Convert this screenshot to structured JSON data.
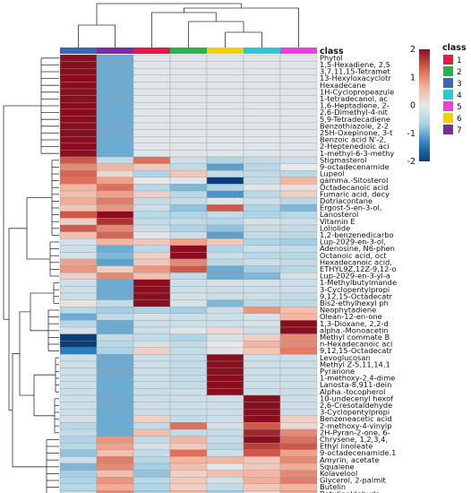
{
  "chart_data": {
    "type": "heatmap",
    "annotation_title": "class",
    "columns": [
      "3",
      "7",
      "1",
      "2",
      "6",
      "4",
      "5"
    ],
    "column_classes": [
      "3",
      "7",
      "1",
      "2",
      "6",
      "4",
      "5"
    ],
    "rows": [
      "Phytol",
      "1,5-Hexadiene, 2,5",
      "3,7,11,15-Tetramet",
      "13-Hexyloxacyclotr",
      "Hexadecane",
      "1H-Cyclopropeazule",
      "1-tetradecanol, ac",
      "1,6-Heptadiene, 2-",
      "2,6-Dimethyl-4-nit",
      "5,9-Tetradecadiene",
      "Benzothiazole, 2-2",
      "25H-Oxepinone, 3-t",
      "Benzoic acid N'-2,",
      "2-Heptenedioic aci",
      "1-methyl-6-3-methy",
      "Stigmasterol",
      "9-octadecenamide",
      "Lupeol",
      "gamma.-Sitosterol",
      "Octadecanoic acid",
      "Fumaric acid, decy",
      "Dotriacontane",
      "Ergost-5-en-3-ol,",
      "Lanosterol",
      "Vitamin E",
      "Loliolide",
      "1,2-benzenedicarbo",
      "Lup-2029-en-3-ol,",
      "Adenosine, N6-phen",
      "Octanoic acid, oct",
      "Hexadecanoic acid,",
      "ETHYL9Z,12Z-9,12-o",
      "Lup-2029-en-3-yl-a",
      "1-Methylbutylmande",
      "3-Cyclopentylpropi",
      "9,12,15-Octadecatr",
      "Bis2-ethylhexyl ph",
      "Neophytadiene",
      "Olean-12-en-one",
      "1,3-Dioxane, 2,2-d",
      "alpha.-Monoacetin",
      "Methyl commate B",
      "n-Hexadecanoic aci",
      "9,12,15-Octadecatr",
      "Levoglucosan",
      "Methyl Z-5,11,14,1",
      "Pyranone",
      "1-methoxy-2,4-dime",
      "Lanosta-8,911-dein",
      "Alpha.-tocopherol",
      "10-undecenyl hexof",
      "2,6-Cresotaldehyde",
      "3-Cyclopentylpropi",
      "Benzeneacetic acid",
      "2-methoxy-4-vinylp",
      "2H-Pyran-2-one, 6-",
      "Chrysene, 1,2,3,4,",
      "Ethyl linoleate",
      "9-octadecenamide.1",
      "Amyrin, acetate",
      "Squalene",
      "Kolavelool",
      "Glycerol, 2-palmit",
      "Butelin",
      "Betulinaldehyde"
    ],
    "values": [
      [
        2.2,
        -1.0,
        -0.1,
        -0.1,
        -0.1,
        -0.1,
        -0.1
      ],
      [
        2.2,
        -1.0,
        -0.1,
        -0.1,
        -0.1,
        -0.1,
        -0.1
      ],
      [
        2.2,
        -1.0,
        -0.1,
        -0.1,
        -0.1,
        -0.1,
        -0.1
      ],
      [
        2.2,
        -1.0,
        -0.1,
        -0.1,
        -0.1,
        -0.1,
        -0.1
      ],
      [
        2.2,
        -1.0,
        -0.1,
        -0.1,
        -0.1,
        -0.1,
        -0.1
      ],
      [
        2.2,
        -1.0,
        -0.1,
        -0.1,
        -0.1,
        -0.1,
        -0.1
      ],
      [
        2.2,
        -1.0,
        -0.1,
        -0.1,
        -0.1,
        -0.1,
        -0.1
      ],
      [
        2.2,
        -1.0,
        -0.1,
        -0.1,
        -0.1,
        -0.1,
        -0.1
      ],
      [
        2.2,
        -1.0,
        -0.1,
        -0.1,
        -0.1,
        -0.1,
        -0.1
      ],
      [
        2.2,
        -1.0,
        -0.1,
        -0.1,
        -0.1,
        -0.1,
        -0.1
      ],
      [
        2.2,
        -1.0,
        -0.1,
        -0.1,
        -0.1,
        -0.1,
        -0.1
      ],
      [
        2.2,
        -1.0,
        -0.1,
        -0.1,
        -0.1,
        -0.1,
        -0.1
      ],
      [
        2.2,
        -1.0,
        -0.1,
        -0.1,
        -0.1,
        -0.1,
        -0.1
      ],
      [
        2.2,
        -1.0,
        -0.1,
        -0.1,
        -0.1,
        -0.1,
        -0.1
      ],
      [
        2.2,
        -1.0,
        -0.1,
        -0.1,
        -0.1,
        -0.1,
        -0.1
      ],
      [
        1.4,
        -0.4,
        1.2,
        -0.3,
        -0.6,
        -0.4,
        -0.3
      ],
      [
        1.0,
        0.6,
        0.4,
        -0.4,
        -1.1,
        -0.5,
        0.0
      ],
      [
        1.3,
        0.2,
        -0.6,
        0.4,
        -0.4,
        -0.4,
        -0.5
      ],
      [
        1.2,
        0.8,
        0.0,
        -0.1,
        -2.2,
        -0.4,
        0.6
      ],
      [
        0.6,
        1.2,
        -0.5,
        -0.9,
        -0.6,
        -0.1,
        0.1
      ],
      [
        0.5,
        0.8,
        0.3,
        -0.5,
        -1.2,
        -0.5,
        0.3
      ],
      [
        0.7,
        1.1,
        -0.4,
        -0.4,
        -0.1,
        -0.3,
        -0.5
      ],
      [
        0.4,
        0.9,
        -0.3,
        -0.8,
        1.4,
        -0.6,
        -0.9
      ],
      [
        1.4,
        2.2,
        -0.5,
        -0.6,
        -0.4,
        -0.6,
        -0.5
      ],
      [
        0.3,
        1.7,
        -0.4,
        -0.4,
        -0.5,
        -0.2,
        -0.3
      ],
      [
        1.4,
        1.0,
        -0.3,
        -0.6,
        -0.8,
        -0.4,
        -0.4
      ],
      [
        0.5,
        1.3,
        -0.1,
        -0.3,
        -1.1,
        -0.4,
        -0.5
      ],
      [
        -0.2,
        0.6,
        0.4,
        0.8,
        0.4,
        -0.6,
        -0.7
      ],
      [
        -0.3,
        -1.0,
        -0.5,
        2.2,
        -0.6,
        -0.3,
        -0.4
      ],
      [
        -0.2,
        -0.9,
        0.3,
        2.2,
        -0.3,
        -0.5,
        -0.5
      ],
      [
        0.8,
        -1.1,
        0.4,
        1.0,
        -0.5,
        -0.3,
        -0.4
      ],
      [
        0.9,
        0.3,
        0.9,
        1.4,
        -1.0,
        -0.7,
        -0.5
      ],
      [
        0.3,
        1.0,
        0.5,
        -0.4,
        -1.0,
        -0.9,
        -0.2
      ],
      [
        -0.3,
        -1.0,
        2.2,
        -0.3,
        -0.2,
        -0.2,
        -0.3
      ],
      [
        -0.3,
        -1.0,
        2.2,
        -0.3,
        -0.3,
        -0.3,
        -0.3
      ],
      [
        -0.3,
        -1.0,
        2.2,
        -0.2,
        -0.3,
        -0.3,
        -0.4
      ],
      [
        0.1,
        -0.4,
        2.0,
        -0.2,
        -0.9,
        -0.5,
        -0.5
      ],
      [
        -0.5,
        -0.7,
        -0.6,
        -0.7,
        -0.3,
        0.9,
        0.5
      ],
      [
        -1.0,
        -0.4,
        -0.2,
        -0.3,
        -0.3,
        -0.2,
        0.6
      ],
      [
        -0.5,
        -1.0,
        -0.3,
        -0.3,
        -0.3,
        -0.2,
        2.2
      ],
      [
        -0.2,
        -1.0,
        -0.3,
        -0.1,
        0.2,
        -0.3,
        2.0
      ],
      [
        -2.0,
        -0.4,
        -0.4,
        -0.6,
        -0.2,
        0.3,
        1.0
      ],
      [
        -2.1,
        -0.5,
        -0.2,
        -0.4,
        0.0,
        0.6,
        1.0
      ],
      [
        -1.4,
        -0.6,
        0.3,
        -0.4,
        -0.1,
        0.4,
        1.1
      ],
      [
        -0.3,
        -1.0,
        -0.3,
        -0.4,
        2.2,
        -0.3,
        -0.3
      ],
      [
        -0.3,
        -1.0,
        -0.3,
        -0.4,
        2.2,
        -0.3,
        -0.3
      ],
      [
        -0.3,
        -1.0,
        -0.3,
        -0.4,
        2.2,
        -0.3,
        -0.3
      ],
      [
        -0.3,
        -1.0,
        -0.3,
        -0.4,
        2.2,
        -0.3,
        -0.3
      ],
      [
        -0.3,
        -1.0,
        -0.3,
        -0.4,
        2.2,
        -0.3,
        -0.3
      ],
      [
        -0.3,
        -1.0,
        -0.3,
        -0.3,
        2.1,
        -0.3,
        -0.3
      ],
      [
        -0.3,
        -1.0,
        -0.3,
        -0.3,
        -0.3,
        2.2,
        -0.3
      ],
      [
        -0.3,
        -1.0,
        -0.3,
        -0.3,
        -0.3,
        2.2,
        -0.3
      ],
      [
        -0.3,
        -1.0,
        -0.3,
        -0.3,
        -0.3,
        2.2,
        -0.3
      ],
      [
        -0.2,
        -1.0,
        0.3,
        -0.4,
        -0.3,
        2.0,
        0.3
      ],
      [
        -0.5,
        -1.0,
        -0.4,
        1.2,
        -0.2,
        1.4,
        0.2
      ],
      [
        -0.4,
        -1.0,
        0.5,
        -0.4,
        -0.4,
        1.8,
        1.0
      ],
      [
        -0.6,
        0.9,
        -0.4,
        0.6,
        -0.4,
        2.0,
        1.2
      ],
      [
        -0.5,
        0.8,
        -0.2,
        0.4,
        -0.5,
        1.6,
        1.4
      ],
      [
        -0.8,
        0.5,
        -0.4,
        1.2,
        -0.3,
        1.4,
        0.8
      ],
      [
        -0.3,
        1.1,
        -0.5,
        0.6,
        0.6,
        0.4,
        1.0
      ],
      [
        -0.9,
        1.0,
        -0.7,
        0.5,
        -0.1,
        0.4,
        0.7
      ],
      [
        -0.7,
        0.5,
        -0.8,
        0.3,
        0.5,
        0.6,
        1.0
      ],
      [
        -0.6,
        0.9,
        -0.5,
        0.4,
        -0.2,
        0.7,
        1.1
      ],
      [
        -0.5,
        0.7,
        -0.6,
        0.3,
        -0.4,
        0.4,
        0.6
      ],
      [
        -0.4,
        1.0,
        -0.7,
        0.6,
        -0.7,
        0.3,
        0.8
      ]
    ],
    "color_scale": {
      "min": -2,
      "max": 2,
      "ticks": [
        2,
        1,
        0,
        -1,
        -2
      ],
      "colors": [
        "#0b3d78",
        "#2f86c1",
        "#a9d2e5",
        "#e8e8e8",
        "#f5b19a",
        "#d6604d",
        "#8b0e1f"
      ]
    },
    "class_legend": {
      "title": "class",
      "items": [
        {
          "label": "1",
          "color": "#e6194b"
        },
        {
          "label": "2",
          "color": "#2bb24c"
        },
        {
          "label": "3",
          "color": "#3a67b8"
        },
        {
          "label": "4",
          "color": "#31c6d4"
        },
        {
          "label": "5",
          "color": "#ef3ee0"
        },
        {
          "label": "6",
          "color": "#f0d000"
        },
        {
          "label": "7",
          "color": "#7a2da0"
        }
      ]
    },
    "legend_position": "top-right",
    "grid": true
  }
}
